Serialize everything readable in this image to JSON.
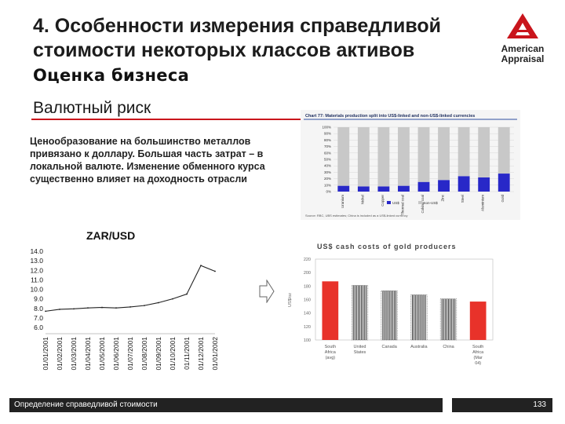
{
  "slide": {
    "title": "4. Особенности измерения справедливой стоимости некоторых классов активов",
    "subtitle": "Оценка бизнеса",
    "section": "Валютный риск",
    "body": "Ценообразование на большинство металлов привязано к доллару. Большая часть затрат – в локальной валюте. Изменение обменного курса существенно влияет на доходность отрасли",
    "footer": "Определение справедливой стоимости",
    "page_number": "133",
    "logo_line1": "American",
    "logo_line2": "Appraisal",
    "accent_color": "#c9151c"
  },
  "chart_data": [
    {
      "type": "bar",
      "title": "Chart 77: Materials production split into US$-linked and non-US$-linked currencies",
      "categories": [
        "Uranium",
        "Nickel",
        "Copper",
        "Thermal coal",
        "Coking coal",
        "Zinc",
        "Steel",
        "Aluminium",
        "Gold"
      ],
      "yticks": [
        "0%",
        "10%",
        "20%",
        "30%",
        "40%",
        "50%",
        "60%",
        "70%",
        "80%",
        "90%",
        "100%"
      ],
      "ylim": [
        0,
        100
      ],
      "series": [
        {
          "name": "US$",
          "values": [
            9,
            8,
            8,
            9,
            15,
            18,
            24,
            22,
            28
          ],
          "color": "#2828c8"
        },
        {
          "name": "non-US$",
          "values": [
            91,
            92,
            92,
            91,
            85,
            82,
            76,
            78,
            72
          ],
          "color": "#c8c8c8"
        }
      ],
      "legend": [
        "US$",
        "non-US$"
      ],
      "source": "Source: RBC, UBS estimates; China is included as a US$-linked currency"
    },
    {
      "type": "line",
      "title": "ZAR/USD",
      "categories": [
        "01/01/2001",
        "01/02/2001",
        "01/03/2001",
        "01/04/2001",
        "01/05/2001",
        "01/06/2001",
        "01/07/2001",
        "01/08/2001",
        "01/09/2001",
        "01/10/2001",
        "01/11/2001",
        "01/12/2001",
        "01/01/2002"
      ],
      "yticks": [
        "14.0",
        "13.0",
        "12.0",
        "11.0",
        "10.0",
        "9.0",
        "8.0",
        "7.0",
        "6.0"
      ],
      "ylim": [
        6,
        14
      ],
      "series": [
        {
          "name": "ZAR/USD",
          "values": [
            7.7,
            7.9,
            7.95,
            8.05,
            8.1,
            8.05,
            8.15,
            8.3,
            8.6,
            9.0,
            9.5,
            12.5,
            11.9
          ]
        }
      ]
    },
    {
      "type": "bar",
      "title": "US$ cash costs of gold producers",
      "ylabel": "US$/oz",
      "categories": [
        "South Africa (avg)",
        "United States",
        "Canada",
        "Australia",
        "China",
        "South Africa (Mar 04)"
      ],
      "yticks": [
        "220",
        "200",
        "180",
        "160",
        "140",
        "120",
        "100"
      ],
      "ylim": [
        100,
        220
      ],
      "values": [
        187,
        181,
        173,
        167,
        161,
        157
      ],
      "colors": [
        "#e8322a",
        "#222222",
        "#222222",
        "#222222",
        "#222222",
        "#e8322a"
      ]
    }
  ]
}
